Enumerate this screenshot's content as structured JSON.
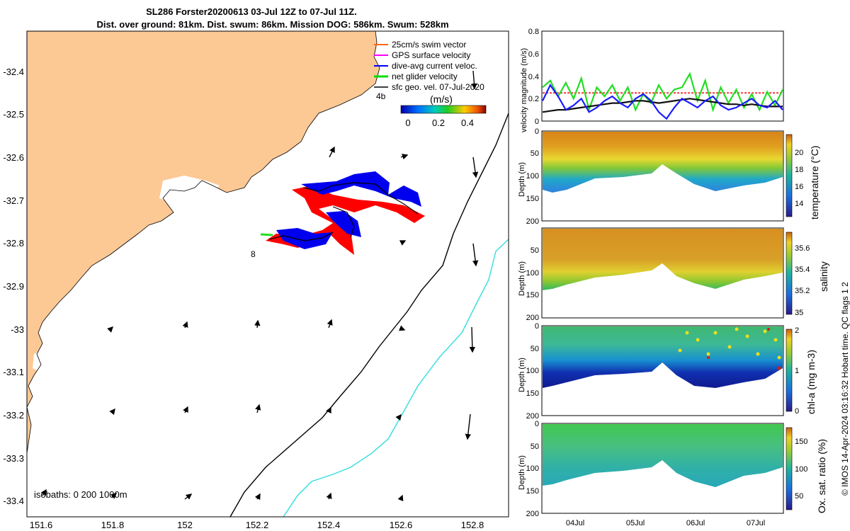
{
  "title": {
    "line1": "SL286 Forster20200613 03-Jul 12Z to 07-Jul 11Z.",
    "line2": "Dist. over ground: 81km. Dist. swum: 86km. Mission DOG: 586km. Swum: 528km"
  },
  "legend": {
    "items": [
      {
        "label": "25cm/s swim vector",
        "color": "#ff6600"
      },
      {
        "label": "GPS surface velocity",
        "color": "#ff00ff"
      },
      {
        "label": "dive-avg current veloc.",
        "color": "#0000ff"
      },
      {
        "label": "net glider velocity",
        "color": "#00dd00"
      },
      {
        "label": "sfc geo. vel. 07-Jul-2020",
        "color": "#000000"
      }
    ],
    "colorbar_title": "(m/s)",
    "colorbar_ticks": [
      "0",
      "0.2",
      "0.4"
    ]
  },
  "map": {
    "x_ticks": [
      "151.6",
      "151.8",
      "152",
      "152.2",
      "152.4",
      "152.6",
      "152.8"
    ],
    "y_ticks": [
      "-32.4",
      "-32.5",
      "-32.6",
      "-32.7",
      "-32.8",
      "-32.9",
      "-33",
      "-33.1",
      "-33.2",
      "-33.3",
      "-33.4"
    ],
    "isobaths_label": "isobaths: 0   200  1000m",
    "track_labels": [
      "4b",
      "8"
    ],
    "land_color": "#fcc894",
    "isobath_200_color": "#000000",
    "isobath_1000_color": "#33dddd"
  },
  "chart_data": [
    {
      "type": "line",
      "ylabel": "velocity magnitude (m/s)",
      "ylim": [
        0,
        0.8
      ],
      "y_ticks": [
        "0",
        "0.2",
        "0.4",
        "0.6",
        "0.8"
      ],
      "x_ticks": [
        "04Jul",
        "05Jul",
        "06Jul",
        "07Jul"
      ],
      "series": [
        {
          "name": "net glider velocity",
          "color": "#22dd22",
          "values": [
            0.3,
            0.36,
            0.22,
            0.34,
            0.2,
            0.38,
            0.1,
            0.3,
            0.22,
            0.32,
            0.18,
            0.3,
            0.1,
            0.24,
            0.16,
            0.32,
            0.2,
            0.28,
            0.3,
            0.42,
            0.18,
            0.36,
            0.1,
            0.3,
            0.16,
            0.28,
            0.12,
            0.24,
            0.1,
            0.26,
            0.14,
            0.28
          ]
        },
        {
          "name": "dive-avg current veloc.",
          "color": "#1a1aff",
          "values": [
            0.18,
            0.32,
            0.22,
            0.1,
            0.14,
            0.2,
            0.08,
            0.12,
            0.18,
            0.22,
            0.16,
            0.12,
            0.2,
            0.24,
            0.18,
            0.08,
            0.02,
            0.12,
            0.2,
            0.16,
            0.12,
            0.18,
            0.22,
            0.14,
            0.1,
            0.12,
            0.16,
            0.2,
            0.14,
            0.12,
            0.18,
            0.1
          ]
        },
        {
          "name": "sfc geo. vel. 07-Jul-2020",
          "color": "#111111",
          "values": [
            0.08,
            0.09,
            0.1,
            0.1,
            0.11,
            0.12,
            0.13,
            0.14,
            0.15,
            0.16,
            0.16,
            0.17,
            0.18,
            0.18,
            0.17,
            0.16,
            0.17,
            0.18,
            0.19,
            0.2,
            0.19,
            0.18,
            0.17,
            0.16,
            0.15,
            0.15,
            0.14,
            0.15,
            0.14,
            0.13,
            0.13,
            0.13
          ]
        },
        {
          "name": "25cm/s swim vector",
          "color": "#ff0000",
          "values": [
            0.25,
            0.25,
            0.25,
            0.25,
            0.25,
            0.25,
            0.25,
            0.25,
            0.25,
            0.25,
            0.25,
            0.25,
            0.25,
            0.25,
            0.25,
            0.25,
            0.25,
            0.25,
            0.25,
            0.25,
            0.25,
            0.25,
            0.25,
            0.25,
            0.25,
            0.25,
            0.25,
            0.25,
            0.25,
            0.25,
            0.25,
            0.25
          ]
        }
      ]
    },
    {
      "type": "heatmap",
      "ylabel": "Depth (m)",
      "y_ticks": [
        "0",
        "50",
        "100",
        "150",
        "200"
      ],
      "colorbar_label": "temperature (°C)",
      "colorbar_ticks": [
        "14",
        "16",
        "18",
        "20"
      ]
    },
    {
      "type": "heatmap",
      "ylabel": "Depth (m)",
      "y_ticks": [
        "50",
        "100",
        "150",
        "200"
      ],
      "colorbar_label": "salinity",
      "colorbar_ticks": [
        "35",
        "35.2",
        "35.4",
        "35.6"
      ]
    },
    {
      "type": "heatmap",
      "ylabel": "Depth (m)",
      "y_ticks": [
        "0",
        "50",
        "100",
        "150",
        "200"
      ],
      "colorbar_label": "chl-a (mg m-3)",
      "colorbar_ticks": [
        "0",
        "1",
        "2"
      ]
    },
    {
      "type": "heatmap",
      "ylabel": "Depth (m)",
      "y_ticks": [
        "0",
        "50",
        "100",
        "150",
        "200"
      ],
      "colorbar_label": "Ox. sat. ratio (%)",
      "colorbar_ticks": [
        "50",
        "100",
        "150"
      ],
      "x_ticks": [
        "04Jul",
        "05Jul",
        "06Jul",
        "07Jul"
      ]
    }
  ],
  "footer": "© IMOS 14-Apr-2024 03:16:32 Hobart time. QC flags 1  2"
}
